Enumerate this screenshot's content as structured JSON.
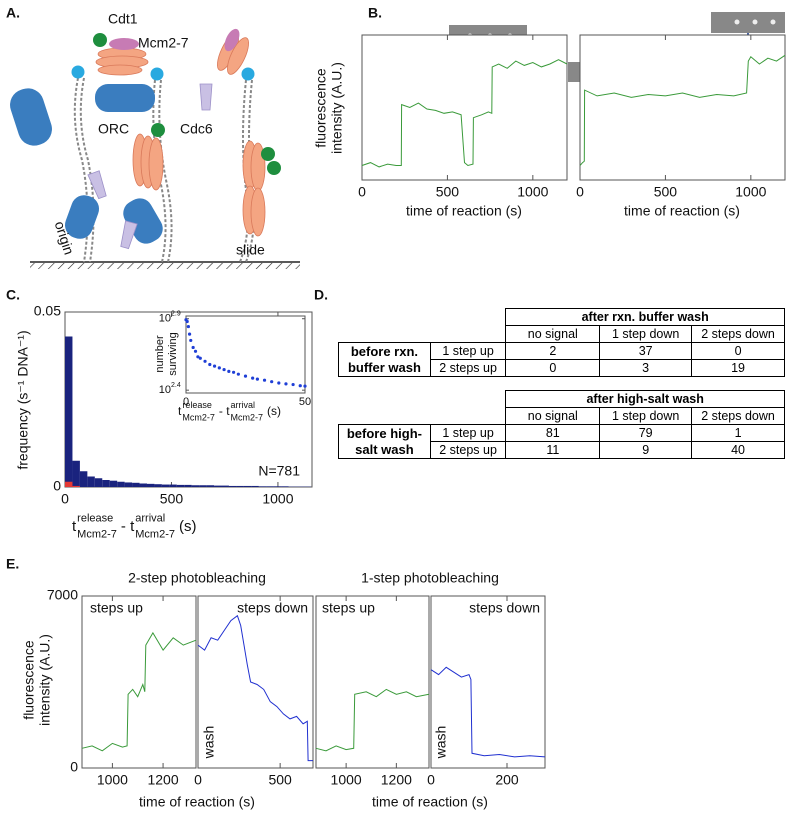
{
  "panel_labels": [
    "A.",
    "B.",
    "C.",
    "D.",
    "E."
  ],
  "diagram": {
    "labels": [
      "Cdt1",
      "Mcm2-7",
      "ORC",
      "Cdc6",
      "origin",
      "slide"
    ]
  },
  "chart_data": [
    {
      "type": "line",
      "ylabel": [
        "fluorescence",
        "intensity (A.U.)"
      ],
      "xlabel": "time of reaction (s)",
      "xlim": [
        0,
        1200
      ],
      "xticks": [
        0,
        500,
        1000
      ],
      "ylim": [
        0,
        100
      ],
      "x": [
        0,
        50,
        100,
        150,
        200,
        230,
        232,
        280,
        330,
        380,
        430,
        480,
        530,
        580,
        600,
        620,
        650,
        652,
        700,
        740,
        760,
        762,
        800,
        850,
        900,
        950,
        1000,
        1050,
        1100,
        1150,
        1200
      ],
      "series": [
        {
          "color": "#3a9a3a",
          "values": [
            10,
            12,
            9,
            11,
            10,
            10,
            52,
            50,
            53,
            49,
            48,
            46,
            47,
            45,
            12,
            10,
            11,
            43,
            45,
            47,
            46,
            78,
            80,
            77,
            82,
            79,
            81,
            78,
            80,
            83,
            80
          ]
        }
      ]
    },
    {
      "type": "line",
      "xlabel": "time of reaction (s)",
      "xlim": [
        0,
        1200
      ],
      "xticks": [
        0,
        500,
        1000
      ],
      "ylim": [
        0,
        100
      ],
      "x": [
        0,
        15,
        25,
        27,
        100,
        200,
        300,
        400,
        500,
        600,
        700,
        800,
        900,
        975,
        985,
        1000,
        1050,
        1100,
        1150,
        1200
      ],
      "series": [
        {
          "color": "#3a9a3a",
          "values": [
            10,
            12,
            13,
            62,
            58,
            60,
            57,
            59,
            58,
            60,
            57,
            59,
            58,
            60,
            82,
            85,
            80,
            84,
            82,
            86
          ]
        }
      ]
    },
    {
      "type": "histogram",
      "ylabel": "frequency (s⁻¹ DNA⁻¹)",
      "xlabel": {
        "t1": "t",
        "sup1": "release",
        "sub1": "Mcm2-7",
        "mid": "- t",
        "sup2": "arrival",
        "sub2": "Mcm2-7",
        "unit": "(s)"
      },
      "xlim": [
        0,
        1160
      ],
      "xticks": [
        0,
        500,
        1000
      ],
      "ylim": [
        0,
        0.05
      ],
      "yticks": [
        0,
        0.05
      ],
      "bins": [
        0,
        35,
        70,
        105,
        140,
        175,
        210,
        245,
        280,
        315,
        350,
        385,
        420,
        455,
        490,
        525,
        560,
        595,
        630,
        665,
        700,
        735,
        770,
        805,
        840,
        875,
        910,
        945,
        980,
        1015,
        1050,
        1085,
        1120,
        1155
      ],
      "series": [
        {
          "color": "#1a237e",
          "values": [
            0.043,
            0.0075,
            0.0045,
            0.003,
            0.0025,
            0.002,
            0.0018,
            0.0015,
            0.0013,
            0.0012,
            0.001,
            0.0009,
            0.0008,
            0.0007,
            0.0007,
            0.0006,
            0.0006,
            0.0005,
            0.0005,
            0.0005,
            0.0004,
            0.0004,
            0.0003,
            0.0003,
            0.0003,
            0.0003,
            0.0002,
            0.0002,
            0.0002,
            0.0002,
            0.0001,
            0.0001,
            0.0001
          ]
        },
        {
          "color": "#e53935",
          "values": [
            0.0015,
            0.0003,
            0,
            0,
            0,
            0,
            0,
            0,
            0,
            0,
            0,
            0,
            0,
            0,
            0,
            0,
            0,
            0,
            0,
            0,
            0,
            0,
            0,
            0,
            0,
            0,
            0,
            0,
            0,
            0,
            0,
            0,
            0
          ]
        }
      ],
      "annotations": [
        "N=781"
      ]
    },
    {
      "type": "scatter",
      "log_y": true,
      "ylabel": [
        "number",
        "surviving"
      ],
      "xlabel": {
        "t1": "t",
        "sup1": "release",
        "sub1": "Mcm2-7",
        "mid": "- t",
        "sup2": "arrival",
        "sub2": "Mcm2-7",
        "unit": "(s)"
      },
      "xlim": [
        0,
        50
      ],
      "xticks": [
        0,
        50
      ],
      "ylim": [
        240,
        830
      ],
      "yticks": [
        {
          "value": 251.19,
          "label": "10",
          "exponent": "2.4"
        },
        {
          "value": 794.33,
          "label": "10",
          "exponent": "2.9"
        }
      ],
      "x": [
        0,
        0.5,
        1,
        1.5,
        2,
        3,
        4,
        5,
        6,
        8,
        10,
        12,
        14,
        16,
        18,
        20,
        22,
        25,
        28,
        30,
        33,
        36,
        39,
        42,
        45,
        48,
        50
      ],
      "series": [
        {
          "color": "#1f3fd6",
          "values": [
            781,
            760,
            700,
            620,
            560,
            500,
            470,
            430,
            420,
            400,
            380,
            370,
            360,
            350,
            340,
            335,
            325,
            315,
            305,
            300,
            295,
            288,
            282,
            278,
            275,
            270,
            268
          ]
        }
      ]
    },
    {
      "type": "line",
      "title": "2-step photobleaching",
      "ylabel": [
        "fluorescence",
        "intensity (A.U.)"
      ],
      "xlabel": "time of reaction (s)",
      "xlim": [
        880,
        1330
      ],
      "xticks": [
        1000,
        1200
      ],
      "ylim": [
        0,
        7000
      ],
      "yticks": [
        0,
        7000
      ],
      "x": [
        880,
        920,
        960,
        1000,
        1040,
        1058,
        1062,
        1080,
        1100,
        1120,
        1128,
        1132,
        1160,
        1200,
        1240,
        1280,
        1330
      ],
      "series": [
        {
          "color": "#3a9a3a",
          "values": [
            800,
            900,
            700,
            1000,
            850,
            900,
            3000,
            3200,
            2900,
            3400,
            3100,
            5000,
            5500,
            4800,
            5300,
            5000,
            5200
          ]
        }
      ],
      "annotations": [
        "steps up"
      ]
    },
    {
      "type": "line",
      "xlim": [
        0,
        700
      ],
      "xticks": [
        0,
        500
      ],
      "ylim": [
        0,
        7000
      ],
      "x": [
        0,
        40,
        80,
        120,
        160,
        200,
        240,
        260,
        280,
        300,
        320,
        360,
        400,
        440,
        480,
        520,
        560,
        600,
        640,
        665,
        670,
        700
      ],
      "series": [
        {
          "color": "#2030d0",
          "values": [
            5000,
            4800,
            5300,
            5200,
            5600,
            6000,
            6200,
            5800,
            5000,
            4200,
            3500,
            3400,
            3200,
            2700,
            2500,
            2200,
            2000,
            2100,
            1800,
            1900,
            300,
            300
          ]
        }
      ],
      "annotations": [
        "steps down",
        "wash"
      ]
    },
    {
      "type": "line",
      "title": "1-step photobleaching",
      "xlabel": "time of reaction (s)",
      "xlim": [
        880,
        1330
      ],
      "xticks": [
        1000,
        1200
      ],
      "ylim": [
        0,
        7000
      ],
      "x": [
        880,
        920,
        960,
        1000,
        1030,
        1034,
        1080,
        1120,
        1160,
        1200,
        1240,
        1280,
        1330
      ],
      "series": [
        {
          "color": "#3a9a3a",
          "values": [
            800,
            700,
            900,
            750,
            800,
            3000,
            3100,
            2900,
            3200,
            3000,
            3100,
            2900,
            3000
          ]
        }
      ],
      "annotations": [
        "steps up"
      ]
    },
    {
      "type": "line",
      "xlim": [
        0,
        300
      ],
      "xticks": [
        0,
        200
      ],
      "ylim": [
        0,
        7000
      ],
      "x": [
        0,
        20,
        40,
        60,
        80,
        100,
        105,
        108,
        140,
        180,
        220,
        260,
        300
      ],
      "series": [
        {
          "color": "#2030d0",
          "values": [
            4000,
            3800,
            4100,
            3900,
            3700,
            3800,
            3600,
            600,
            500,
            550,
            450,
            500,
            450
          ]
        }
      ],
      "annotations": [
        "steps down",
        "wash"
      ]
    }
  ],
  "tables": [
    {
      "header": "after rxn. buffer wash",
      "columns": [
        "no signal",
        "1 step down",
        "2 steps down"
      ],
      "row_group": "before rxn. buffer wash",
      "rows": [
        [
          "1 step up",
          2,
          37,
          0
        ],
        [
          "2 steps up",
          0,
          3,
          19
        ]
      ]
    },
    {
      "header": "after high-salt wash",
      "columns": [
        "no signal",
        "1 step down",
        "2 steps down"
      ],
      "row_group": "before high-salt wash",
      "rows": [
        [
          "1 step up",
          81,
          79,
          1
        ],
        [
          "2 steps up",
          11,
          9,
          40
        ]
      ]
    }
  ]
}
